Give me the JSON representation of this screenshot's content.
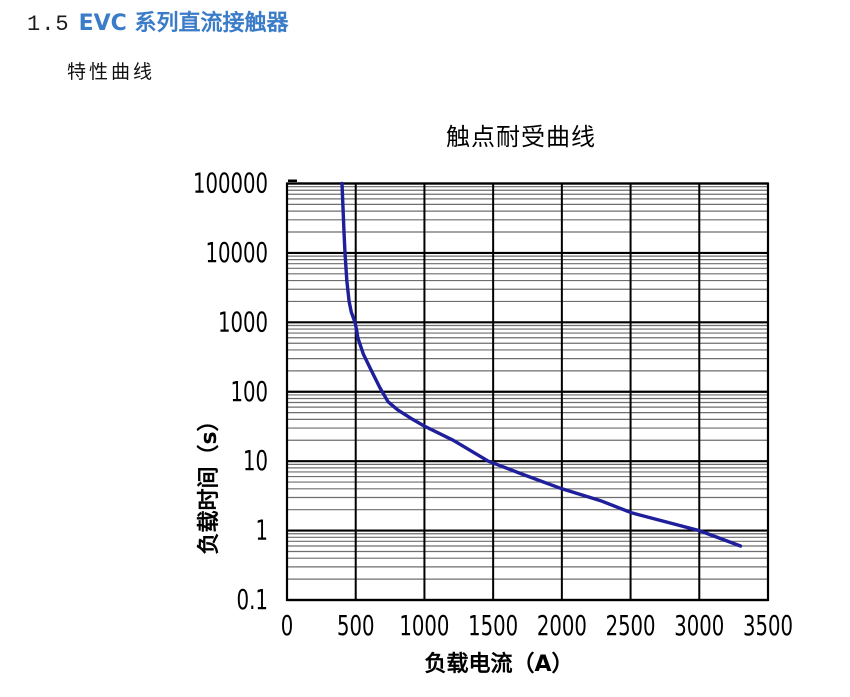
{
  "document": {
    "section_number": "1.5",
    "section_title": "EVC 系列直流接触器",
    "subsection_title": "特性曲线"
  },
  "colors": {
    "heading_blue": "#3b7cc8",
    "curve_navy": "#1f1f9c",
    "grid_major": "#000000",
    "grid_minor": "#6e6e6e",
    "text_black": "#000000"
  },
  "chart_data": {
    "type": "line",
    "title": "触点耐受曲线",
    "xlabel": "负载电流（A）",
    "ylabel": "负载时间（s）",
    "legend": "none",
    "grid": "major-and-log-minor",
    "x_axis": {
      "scale": "linear",
      "min": 0,
      "max": 3500,
      "tick_step": 500,
      "tick_labels": [
        "0",
        "500",
        "1000",
        "1500",
        "2000",
        "2500",
        "3000",
        "3500"
      ]
    },
    "y_axis": {
      "scale": "log",
      "min": 0.1,
      "max": 100000,
      "tick_labels": [
        "100000",
        "10000",
        "1000",
        "100",
        "10",
        "1",
        "0.1"
      ]
    },
    "series": [
      {
        "name": "触点耐受曲线",
        "color": "#1f1f9c",
        "points_x_amps_y_seconds": [
          [
            400,
            100000
          ],
          [
            415,
            20000
          ],
          [
            422,
            10000
          ],
          [
            435,
            4000
          ],
          [
            452,
            2000
          ],
          [
            468,
            1400
          ],
          [
            495,
            1000
          ],
          [
            508,
            750
          ],
          [
            515,
            600
          ],
          [
            555,
            350
          ],
          [
            615,
            200
          ],
          [
            675,
            115
          ],
          [
            735,
            72
          ],
          [
            805,
            55
          ],
          [
            915,
            40
          ],
          [
            1000,
            32
          ],
          [
            1210,
            20
          ],
          [
            1465,
            10
          ],
          [
            1720,
            6.4
          ],
          [
            2000,
            4
          ],
          [
            2280,
            2.7
          ],
          [
            2510,
            1.8
          ],
          [
            3000,
            1
          ],
          [
            3300,
            0.6
          ]
        ]
      }
    ]
  }
}
